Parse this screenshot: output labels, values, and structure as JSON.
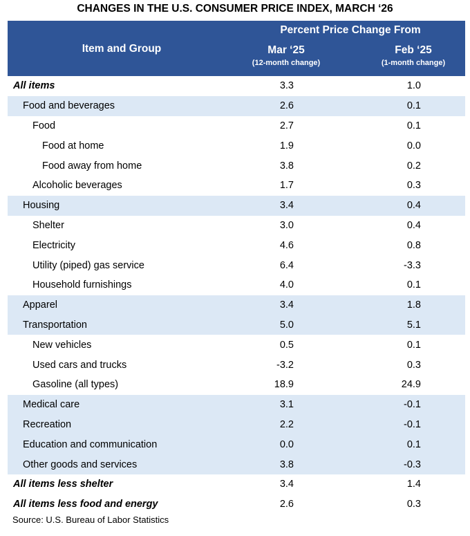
{
  "title": "CHANGES IN THE U.S. CONSUMER PRICE INDEX, MARCH ‘26",
  "header": {
    "item_group": "Item and Group",
    "span_label": "Percent Price Change From",
    "col1": {
      "label": "Mar ‘25",
      "sub": "(12-month change)"
    },
    "col2": {
      "label": "Feb ‘25",
      "sub": "(1-month change)"
    }
  },
  "colors": {
    "header_bg": "#2F5597",
    "shade": "#DCE8F5"
  },
  "rows": [
    {
      "label": "All items",
      "level": 0,
      "shade": false,
      "v12": "3.3",
      "v1": "1.0"
    },
    {
      "label": "Food and beverages",
      "level": 1,
      "shade": true,
      "v12": "2.6",
      "v1": "0.1"
    },
    {
      "label": "Food",
      "level": 2,
      "shade": false,
      "v12": "2.7",
      "v1": "0.1"
    },
    {
      "label": "Food at home",
      "level": 3,
      "shade": false,
      "v12": "1.9",
      "v1": "0.0"
    },
    {
      "label": "Food away from home",
      "level": 3,
      "shade": false,
      "v12": "3.8",
      "v1": "0.2"
    },
    {
      "label": "Alcoholic beverages",
      "level": 2,
      "shade": false,
      "v12": "1.7",
      "v1": "0.3"
    },
    {
      "label": "Housing",
      "level": 1,
      "shade": true,
      "v12": "3.4",
      "v1": "0.4"
    },
    {
      "label": "Shelter",
      "level": 2,
      "shade": false,
      "v12": "3.0",
      "v1": "0.4"
    },
    {
      "label": "Electricity",
      "level": 2,
      "shade": false,
      "v12": "4.6",
      "v1": "0.8"
    },
    {
      "label": "Utility (piped) gas service",
      "level": 2,
      "shade": false,
      "v12": "6.4",
      "v1": "-3.3"
    },
    {
      "label": "Household furnishings",
      "level": 2,
      "shade": false,
      "v12": "4.0",
      "v1": "0.1"
    },
    {
      "label": "Apparel",
      "level": 1,
      "shade": true,
      "v12": "3.4",
      "v1": "1.8"
    },
    {
      "label": "Transportation",
      "level": 1,
      "shade": true,
      "v12": "5.0",
      "v1": "5.1"
    },
    {
      "label": "New vehicles",
      "level": 2,
      "shade": false,
      "v12": "0.5",
      "v1": "0.1"
    },
    {
      "label": "Used cars and trucks",
      "level": 2,
      "shade": false,
      "v12": "-3.2",
      "v1": "0.3"
    },
    {
      "label": "Gasoline (all types)",
      "level": 2,
      "shade": false,
      "v12": "18.9",
      "v1": "24.9"
    },
    {
      "label": "Medical care",
      "level": 1,
      "shade": true,
      "v12": "3.1",
      "v1": "-0.1"
    },
    {
      "label": "Recreation",
      "level": 1,
      "shade": true,
      "v12": "2.2",
      "v1": "-0.1"
    },
    {
      "label": "Education and communication",
      "level": 1,
      "shade": true,
      "v12": "0.0",
      "v1": "0.1"
    },
    {
      "label": "Other goods and services",
      "level": 1,
      "shade": true,
      "v12": "3.8",
      "v1": "-0.3"
    },
    {
      "label": "All items less shelter",
      "level": 0,
      "shade": false,
      "v12": "3.4",
      "v1": "1.4"
    },
    {
      "label": "All items less food and energy",
      "level": 0,
      "shade": false,
      "v12": "2.6",
      "v1": "0.3"
    }
  ],
  "source": "Source: U.S. Bureau of Labor Statistics"
}
